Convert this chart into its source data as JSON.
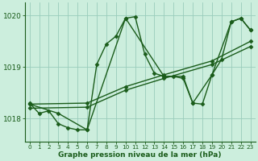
{
  "background_color": "#cceedd",
  "plot_bg_color": "#cceedd",
  "grid_color": "#99ccbb",
  "line_color": "#1a5c1a",
  "xlabel": "Graphe pression niveau de la mer (hPa)",
  "ylim": [
    1017.55,
    1020.25
  ],
  "xlim": [
    -0.5,
    23.5
  ],
  "yticks": [
    1018,
    1019,
    1020
  ],
  "xticks": [
    0,
    1,
    2,
    3,
    4,
    5,
    6,
    7,
    8,
    9,
    10,
    11,
    12,
    13,
    14,
    15,
    16,
    17,
    18,
    19,
    20,
    21,
    22,
    23
  ],
  "series": [
    {
      "x": [
        0,
        1,
        2,
        3,
        4,
        5,
        6,
        7,
        8,
        9,
        10,
        11,
        12,
        13,
        14,
        15,
        16,
        17,
        18,
        19,
        20,
        21,
        22,
        23
      ],
      "y": [
        1018.3,
        1018.1,
        1018.15,
        1017.9,
        1017.82,
        1017.78,
        1017.78,
        1019.05,
        1019.45,
        1019.6,
        1019.95,
        1019.98,
        1019.25,
        1018.88,
        1018.82,
        1018.82,
        1018.78,
        1018.3,
        1018.28,
        1018.85,
        1019.15,
        1019.88,
        1019.95,
        1019.72
      ]
    },
    {
      "x": [
        0,
        6,
        10,
        14,
        19,
        23
      ],
      "y": [
        1018.2,
        1018.22,
        1018.55,
        1018.78,
        1019.05,
        1019.4
      ]
    },
    {
      "x": [
        0,
        6,
        10,
        14,
        19,
        23
      ],
      "y": [
        1018.28,
        1018.3,
        1018.62,
        1018.85,
        1019.12,
        1019.5
      ]
    },
    {
      "x": [
        0,
        3,
        6,
        10,
        14,
        16,
        17,
        19,
        21,
        22,
        23
      ],
      "y": [
        1018.28,
        1018.1,
        1017.78,
        1019.95,
        1018.82,
        1018.82,
        1018.3,
        1018.85,
        1019.88,
        1019.95,
        1019.72
      ]
    }
  ],
  "marker": "D",
  "marker_size": 2.5,
  "linewidth": 1.0
}
